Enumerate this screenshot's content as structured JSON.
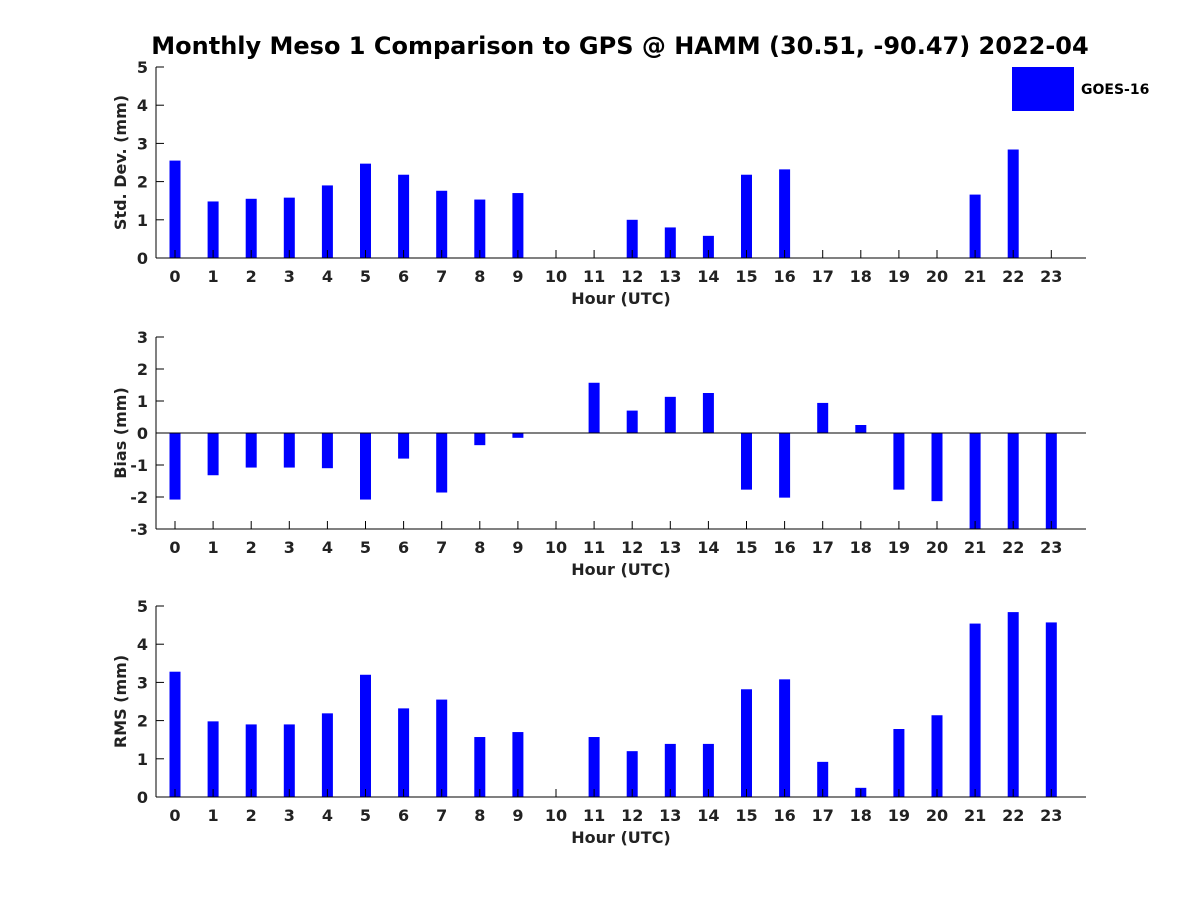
{
  "figure": {
    "title": "Monthly Meso 1 Comparison to GPS @ HAMM (30.51, -90.47) 2022-04"
  },
  "legend": {
    "label": "GOES-16",
    "color": "#0000ff",
    "placement": "top-right"
  },
  "chart_data": [
    {
      "type": "bar",
      "xlabel": "Hour (UTC)",
      "ylabel": "Std. Dev. (mm)",
      "ylim": [
        0,
        5
      ],
      "yticks": [
        0,
        1,
        2,
        3,
        4,
        5
      ],
      "categories": [
        "0",
        "1",
        "2",
        "3",
        "4",
        "5",
        "6",
        "7",
        "8",
        "9",
        "10",
        "11",
        "12",
        "13",
        "14",
        "15",
        "16",
        "17",
        "18",
        "19",
        "20",
        "21",
        "22",
        "23"
      ],
      "series": [
        {
          "name": "GOES-16",
          "color": "#0000ff",
          "values": [
            2.55,
            1.48,
            1.55,
            1.58,
            1.9,
            2.47,
            2.18,
            1.76,
            1.53,
            1.7,
            0,
            0,
            1.0,
            0.8,
            0.58,
            2.18,
            2.32,
            0,
            0,
            0,
            0,
            1.66,
            2.84,
            0
          ]
        }
      ]
    },
    {
      "type": "bar",
      "xlabel": "Hour (UTC)",
      "ylabel": "Bias (mm)",
      "ylim": [
        -3,
        3
      ],
      "yticks": [
        -3,
        -2,
        -1,
        0,
        1,
        2,
        3
      ],
      "categories": [
        "0",
        "1",
        "2",
        "3",
        "4",
        "5",
        "6",
        "7",
        "8",
        "9",
        "10",
        "11",
        "12",
        "13",
        "14",
        "15",
        "16",
        "17",
        "18",
        "19",
        "20",
        "21",
        "22",
        "23"
      ],
      "series": [
        {
          "name": "GOES-16",
          "color": "#0000ff",
          "values": [
            -2.08,
            -1.32,
            -1.08,
            -1.08,
            -1.1,
            -2.08,
            -0.8,
            -1.86,
            -0.38,
            -0.15,
            0,
            1.57,
            0.7,
            1.13,
            1.25,
            -1.77,
            -2.02,
            0.94,
            0.25,
            -1.77,
            -2.13,
            -3.0,
            -3.0,
            -3.0
          ]
        }
      ]
    },
    {
      "type": "bar",
      "xlabel": "Hour (UTC)",
      "ylabel": "RMS (mm)",
      "ylim": [
        0,
        5
      ],
      "yticks": [
        0,
        1,
        2,
        3,
        4,
        5
      ],
      "categories": [
        "0",
        "1",
        "2",
        "3",
        "4",
        "5",
        "6",
        "7",
        "8",
        "9",
        "10",
        "11",
        "12",
        "13",
        "14",
        "15",
        "16",
        "17",
        "18",
        "19",
        "20",
        "21",
        "22",
        "23"
      ],
      "series": [
        {
          "name": "GOES-16",
          "color": "#0000ff",
          "values": [
            3.28,
            1.98,
            1.9,
            1.9,
            2.19,
            3.2,
            2.32,
            2.55,
            1.57,
            1.7,
            0,
            1.57,
            1.2,
            1.39,
            1.39,
            2.82,
            3.08,
            0.92,
            0.24,
            1.78,
            2.14,
            4.54,
            4.84,
            4.57
          ]
        }
      ]
    }
  ]
}
